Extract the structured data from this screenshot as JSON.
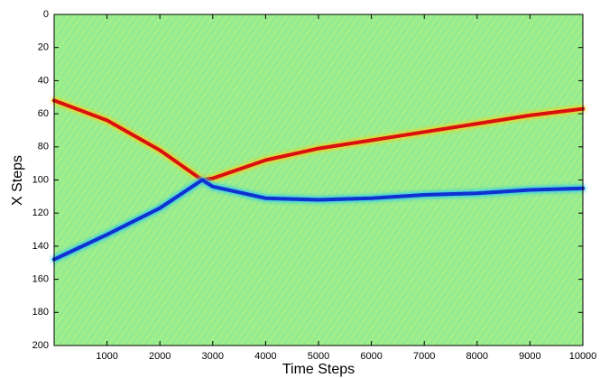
{
  "chart_data": {
    "type": "line",
    "xlabel": "Time Steps",
    "ylabel": "X Steps",
    "xlim": [
      0,
      10000
    ],
    "xticks": [
      1000,
      2000,
      3000,
      4000,
      5000,
      6000,
      7000,
      8000,
      9000,
      10000
    ],
    "ylim": [
      200,
      0
    ],
    "yticks": [
      0,
      20,
      40,
      60,
      80,
      100,
      120,
      140,
      160,
      180,
      200
    ],
    "background_color": "#9cee8c",
    "x": [
      0,
      1000,
      2000,
      2800,
      3000,
      4000,
      5000,
      6000,
      7000,
      8000,
      9000,
      10000
    ],
    "series": [
      {
        "color": "#d81010",
        "glow": "#f5d020",
        "values": [
          52,
          64,
          82,
          100,
          99,
          88,
          81,
          76,
          71,
          66,
          61,
          57
        ]
      },
      {
        "color": "#1030d0",
        "glow": "#30c8f0",
        "values": [
          148,
          133,
          117,
          100,
          104,
          111,
          112,
          111,
          109,
          108,
          106,
          105
        ]
      }
    ]
  }
}
